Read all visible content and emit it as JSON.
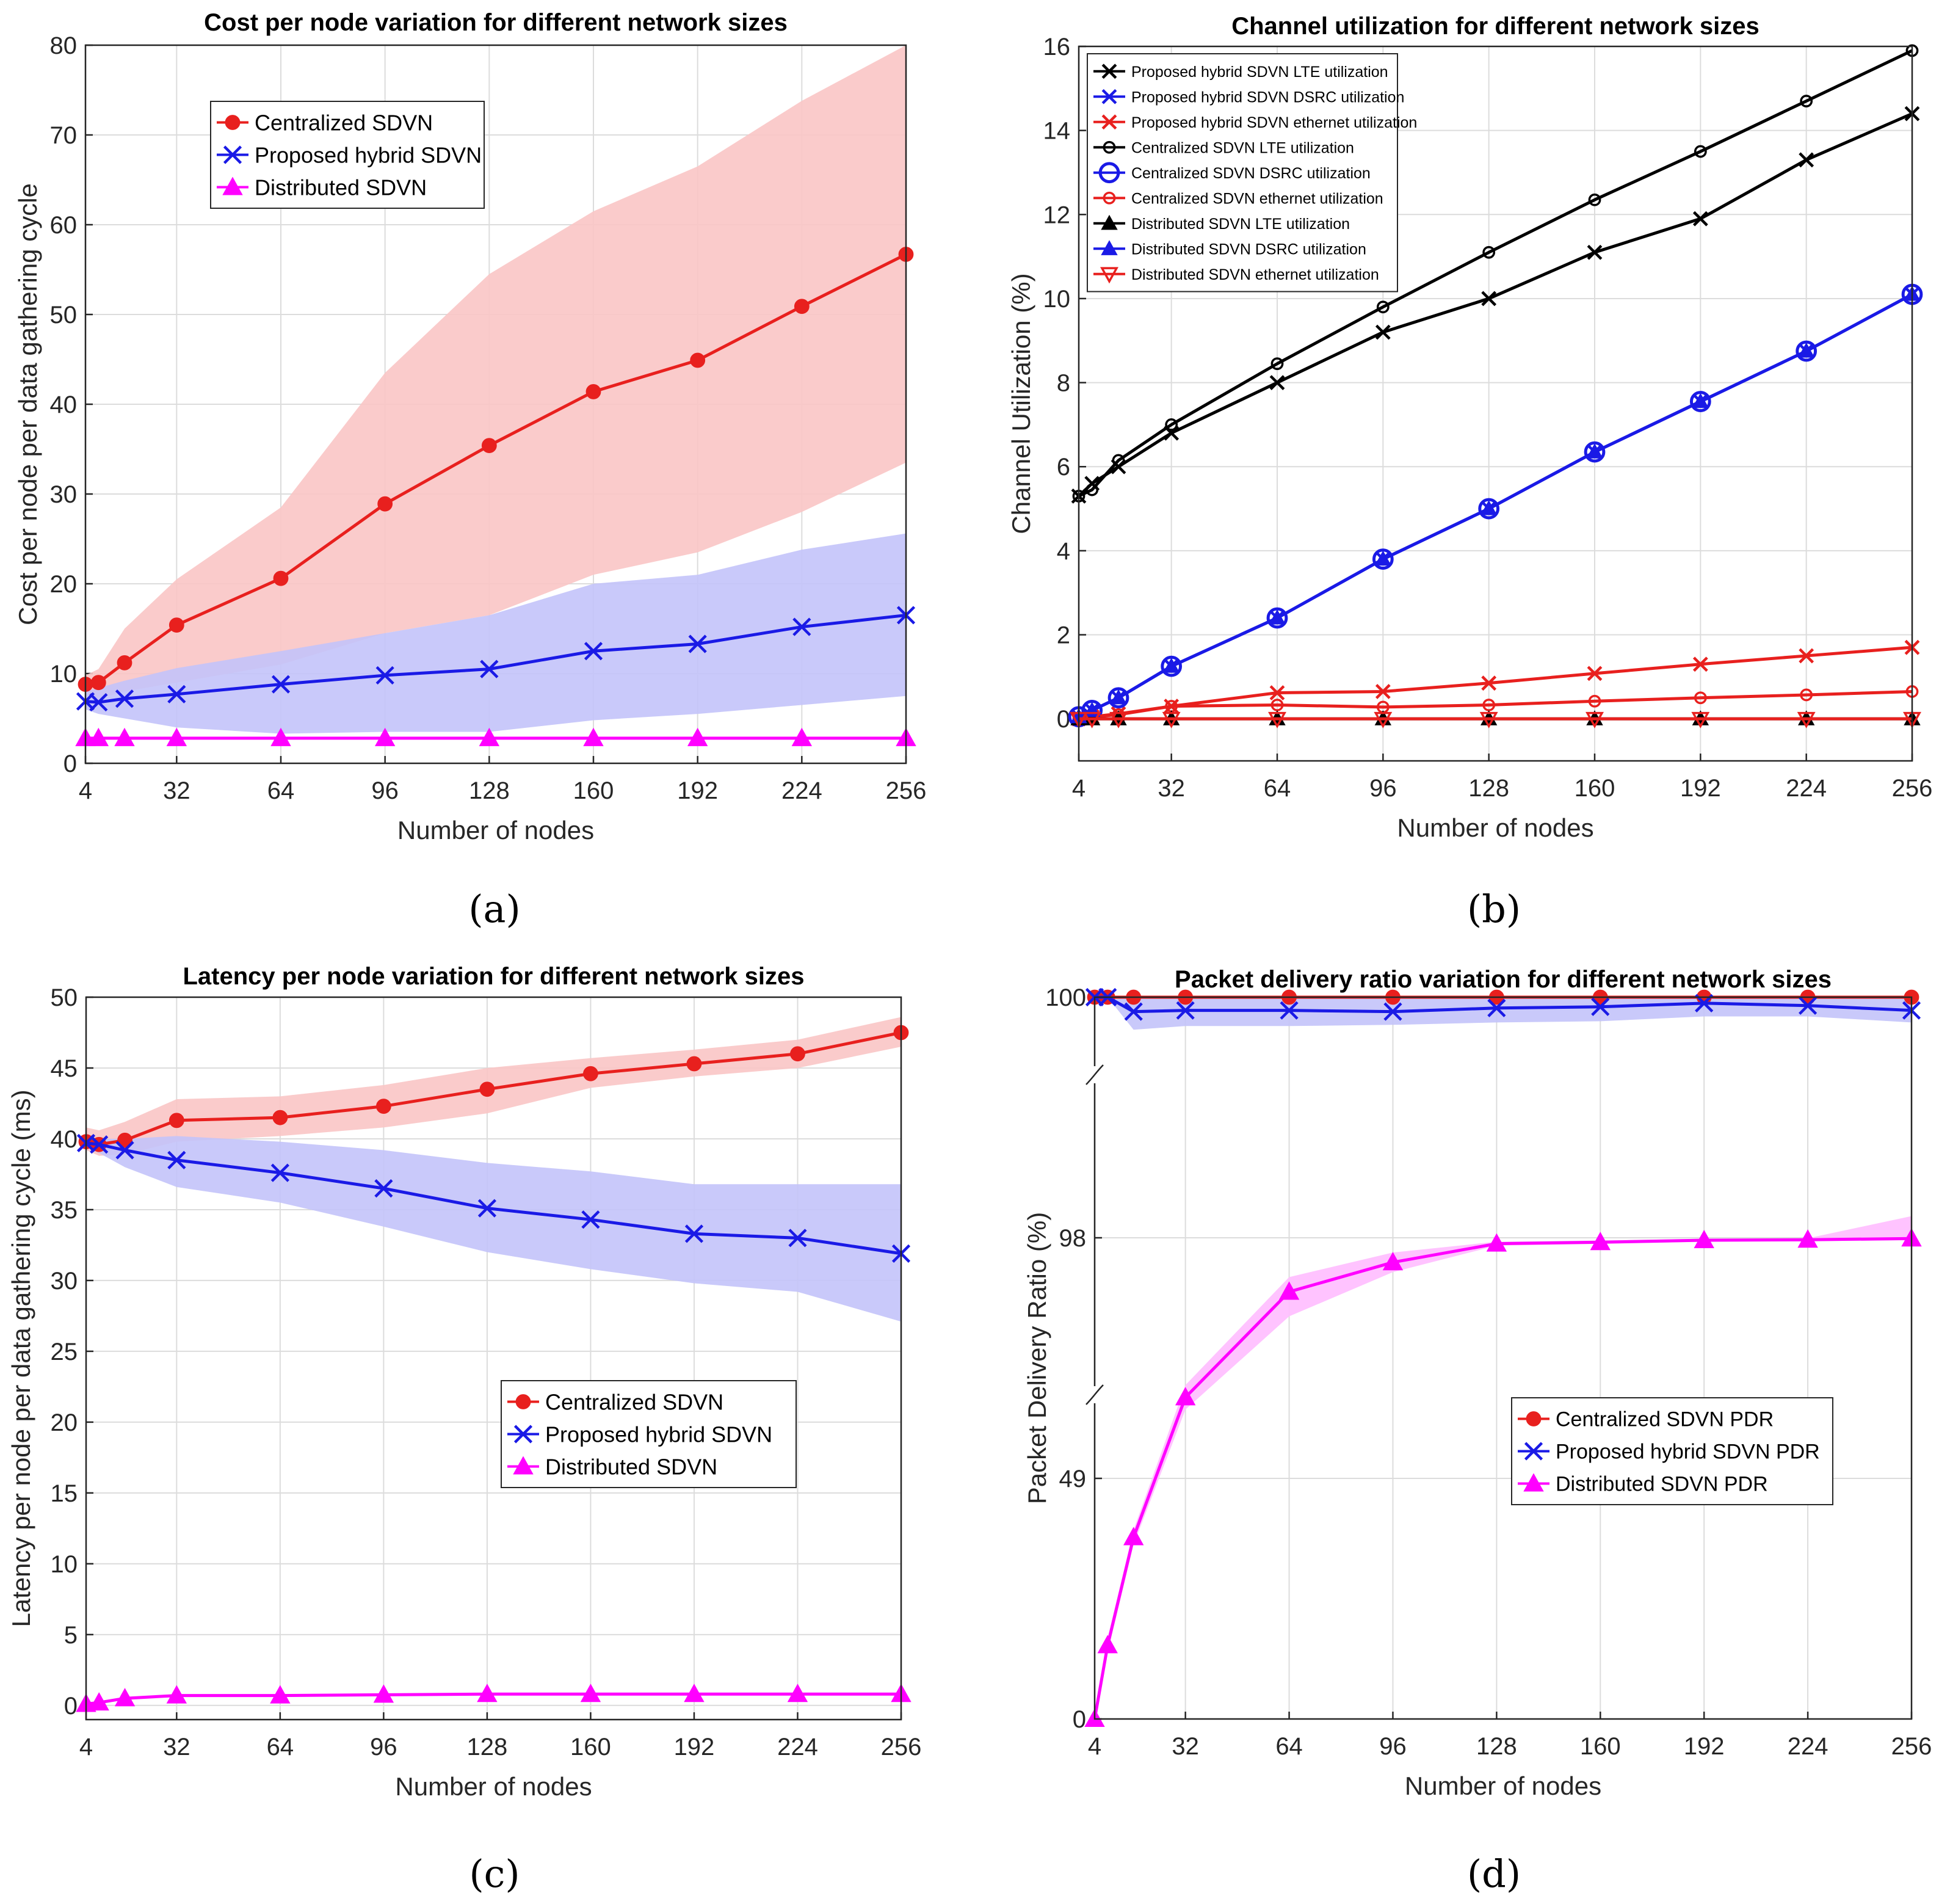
{
  "chart_data": [
    {
      "panel_label": "(a)",
      "type": "line",
      "title": "Cost per node variation for different network sizes",
      "xlabel": "Number of nodes",
      "ylabel": "Cost per node per data gathering cycle",
      "xticks": [
        "4",
        "32",
        "64",
        "96",
        "128",
        "160",
        "192",
        "224",
        "256"
      ],
      "yticks": [
        "0",
        "10",
        "20",
        "30",
        "40",
        "50",
        "60",
        "70",
        "80"
      ],
      "xlim": [
        4,
        256
      ],
      "ylim": [
        0,
        80
      ],
      "grid": true,
      "legend_position": "top-left",
      "x": [
        4,
        8,
        16,
        32,
        64,
        96,
        128,
        160,
        192,
        224,
        256
      ],
      "series": [
        {
          "name": "Centralized SDVN",
          "color": "#e8201e",
          "marker": "dot",
          "values": [
            8.8,
            9.0,
            11.2,
            15.4,
            20.6,
            28.9,
            35.4,
            41.4,
            44.9,
            50.9,
            56.7
          ],
          "band_lower": [
            7.6,
            7.2,
            8.0,
            9.0,
            11.0,
            14.5,
            16.5,
            21.0,
            23.5,
            28.0,
            33.5
          ],
          "band_upper": [
            9.8,
            10.5,
            15.0,
            20.5,
            28.5,
            43.5,
            54.5,
            61.5,
            66.5,
            73.8,
            80.0
          ]
        },
        {
          "name": "Proposed hybrid SDVN",
          "color": "#1a1ae6",
          "marker": "x",
          "values": [
            6.9,
            6.8,
            7.2,
            7.7,
            8.8,
            9.8,
            10.5,
            12.5,
            13.3,
            15.2,
            16.5
          ],
          "band_lower": [
            6.0,
            5.5,
            5.0,
            4.0,
            3.3,
            3.5,
            3.5,
            4.8,
            5.5,
            6.5,
            7.5
          ],
          "band_upper": [
            8.0,
            8.4,
            9.2,
            10.6,
            12.5,
            14.5,
            16.5,
            20.0,
            21.0,
            23.8,
            25.6
          ]
        },
        {
          "name": "Distributed SDVN",
          "color": "#ff00ff",
          "marker": "triangle-up",
          "values": [
            2.8,
            2.8,
            2.8,
            2.8,
            2.8,
            2.8,
            2.8,
            2.8,
            2.8,
            2.8,
            2.8
          ]
        }
      ]
    },
    {
      "panel_label": "(b)",
      "type": "line",
      "title": "Channel utilization for different network sizes",
      "xlabel": "Number of nodes",
      "ylabel": "Channel Utilization (%)",
      "xticks": [
        "4",
        "32",
        "64",
        "96",
        "128",
        "160",
        "192",
        "224",
        "256"
      ],
      "yticks": [
        "0",
        "2",
        "4",
        "6",
        "8",
        "10",
        "12",
        "14",
        "16"
      ],
      "xlim": [
        4,
        256
      ],
      "ylim": [
        -1,
        16
      ],
      "grid": true,
      "legend_position": "top-left",
      "x": [
        4,
        8,
        16,
        32,
        64,
        96,
        128,
        160,
        192,
        224,
        256
      ],
      "series": [
        {
          "name": "Proposed hybrid SDVN LTE utilization",
          "color": "#000000",
          "marker": "x",
          "values": [
            5.3,
            5.6,
            6.0,
            6.8,
            8.0,
            9.2,
            10.0,
            11.1,
            11.9,
            13.3,
            14.4
          ]
        },
        {
          "name": "Proposed hybrid SDVN DSRC utilization",
          "color": "#1a1ae6",
          "marker": "x",
          "values": [
            0.05,
            0.2,
            0.5,
            1.25,
            2.4,
            3.8,
            5.0,
            6.35,
            7.55,
            8.75,
            10.1
          ]
        },
        {
          "name": "Proposed hybrid SDVN ethernet utilization",
          "color": "#e8201e",
          "marker": "x",
          "values": [
            0.0,
            0.05,
            0.12,
            0.3,
            0.62,
            0.65,
            0.85,
            1.08,
            1.3,
            1.5,
            1.7
          ]
        },
        {
          "name": "Centralized SDVN LTE utilization",
          "color": "#000000",
          "marker": "circle",
          "values": [
            5.3,
            5.45,
            6.15,
            7.0,
            8.45,
            9.8,
            11.1,
            12.35,
            13.5,
            14.7,
            15.9
          ]
        },
        {
          "name": "Centralized SDVN DSRC utilization",
          "color": "#1a1ae6",
          "marker": "circle-large",
          "values": [
            0.05,
            0.2,
            0.5,
            1.25,
            2.4,
            3.8,
            5.0,
            6.35,
            7.55,
            8.75,
            10.1
          ]
        },
        {
          "name": "Centralized SDVN ethernet utilization",
          "color": "#e8201e",
          "marker": "circle",
          "values": [
            0.0,
            0.05,
            0.1,
            0.3,
            0.33,
            0.28,
            0.33,
            0.42,
            0.5,
            0.57,
            0.65
          ]
        },
        {
          "name": "Distributed SDVN LTE utilization",
          "color": "#000000",
          "marker": "triangle-up",
          "values": [
            0.0,
            0.0,
            0.0,
            0.0,
            0.0,
            0.0,
            0.0,
            0.0,
            0.0,
            0.0,
            0.0
          ]
        },
        {
          "name": "Distributed SDVN DSRC utilization",
          "color": "#1a1ae6",
          "marker": "triangle-up",
          "values": [
            0.05,
            0.2,
            0.5,
            1.25,
            2.4,
            3.8,
            5.0,
            6.35,
            7.55,
            8.75,
            10.1
          ]
        },
        {
          "name": "Distributed SDVN ethernet utilization",
          "color": "#e8201e",
          "marker": "triangle-down",
          "values": [
            0.0,
            0.0,
            0.0,
            0.0,
            0.0,
            0.0,
            0.0,
            0.0,
            0.0,
            0.0,
            0.0
          ]
        }
      ]
    },
    {
      "panel_label": "(c)",
      "type": "line",
      "title": "Latency per node variation for different network sizes",
      "xlabel": "Number of nodes",
      "ylabel": "Latency per node per data gathering cycle (ms)",
      "xticks": [
        "4",
        "32",
        "64",
        "96",
        "128",
        "160",
        "192",
        "224",
        "256"
      ],
      "yticks": [
        "0",
        "5",
        "10",
        "15",
        "20",
        "25",
        "30",
        "35",
        "40",
        "45",
        "50"
      ],
      "xlim": [
        4,
        256
      ],
      "ylim": [
        -1,
        50
      ],
      "grid": true,
      "legend_position": "center-right",
      "x": [
        4,
        8,
        16,
        32,
        64,
        96,
        128,
        160,
        192,
        224,
        256
      ],
      "series": [
        {
          "name": "Centralized SDVN",
          "color": "#e8201e",
          "marker": "dot",
          "values": [
            39.8,
            39.6,
            39.9,
            41.3,
            41.5,
            42.3,
            43.5,
            44.6,
            45.3,
            46.0,
            47.5
          ],
          "band_lower": [
            39.2,
            38.8,
            38.9,
            39.8,
            40.2,
            40.8,
            41.8,
            43.6,
            44.4,
            45.0,
            46.5
          ],
          "band_upper": [
            40.8,
            40.6,
            41.2,
            42.8,
            43.0,
            43.8,
            45.0,
            45.7,
            46.3,
            47.0,
            48.6
          ]
        },
        {
          "name": "Proposed hybrid SDVN",
          "color": "#1a1ae6",
          "marker": "x",
          "values": [
            39.7,
            39.6,
            39.2,
            38.5,
            37.6,
            36.5,
            35.1,
            34.3,
            33.3,
            33.0,
            31.9
          ],
          "band_lower": [
            39.4,
            39.0,
            38.0,
            36.6,
            35.5,
            33.8,
            32.0,
            30.8,
            29.8,
            29.2,
            27.1
          ],
          "band_upper": [
            40.0,
            40.0,
            40.0,
            40.2,
            39.8,
            39.2,
            38.3,
            37.7,
            36.8,
            36.8,
            36.8
          ]
        },
        {
          "name": "Distributed SDVN",
          "color": "#ff00ff",
          "marker": "triangle-up",
          "values": [
            0.1,
            0.2,
            0.5,
            0.7,
            0.7,
            0.75,
            0.8,
            0.8,
            0.8,
            0.8,
            0.8
          ]
        }
      ]
    },
    {
      "panel_label": "(d)",
      "type": "line",
      "title": "Packet delivery ratio variation for different network sizes",
      "xlabel": "Number of nodes",
      "ylabel": "Packet Delivery Ratio (%)",
      "xticks": [
        "4",
        "32",
        "64",
        "96",
        "128",
        "160",
        "192",
        "224",
        "256"
      ],
      "yticks": [
        "0",
        "49",
        "98",
        "100"
      ],
      "y_axis_note": "broken y-axis; ticks 0, 49, 98, 100 are equally spaced",
      "xlim": [
        4,
        256
      ],
      "ylim": [
        0,
        100
      ],
      "grid": true,
      "legend_position": "center-right",
      "x": [
        4,
        8,
        16,
        32,
        64,
        96,
        128,
        160,
        192,
        224,
        256
      ],
      "series": [
        {
          "name": "Centralized SDVN PDR",
          "color": "#e8201e",
          "marker": "dot",
          "values": [
            100,
            100,
            100,
            100,
            100,
            100,
            100,
            100,
            100,
            100,
            100
          ]
        },
        {
          "name": "Proposed hybrid SDVN PDR",
          "color": "#1a1ae6",
          "marker": "x",
          "values": [
            100,
            100,
            99.88,
            99.89,
            99.89,
            99.88,
            99.91,
            99.92,
            99.95,
            99.93,
            99.89
          ],
          "band_lower": [
            100,
            100,
            99.73,
            99.76,
            99.76,
            99.77,
            99.79,
            99.8,
            99.84,
            99.84,
            99.79
          ],
          "band_upper": [
            100,
            100,
            100,
            100,
            100,
            100,
            100,
            100,
            100,
            100,
            100
          ]
        },
        {
          "name": "Distributed SDVN PDR",
          "color": "#ff00ff",
          "marker": "triangle-up",
          "values": [
            0,
            15,
            37,
            65.5,
            87,
            93,
            96.8,
            97.1,
            97.5,
            97.6,
            97.85
          ],
          "band_lower": [
            0,
            13.5,
            35.5,
            63,
            82,
            91,
            96.4,
            96.75,
            97.2,
            97.3,
            97.5
          ],
          "band_upper": [
            0,
            16.5,
            38.5,
            68,
            90,
            95,
            97.2,
            97.45,
            97.8,
            97.9,
            98.18
          ]
        }
      ]
    }
  ]
}
